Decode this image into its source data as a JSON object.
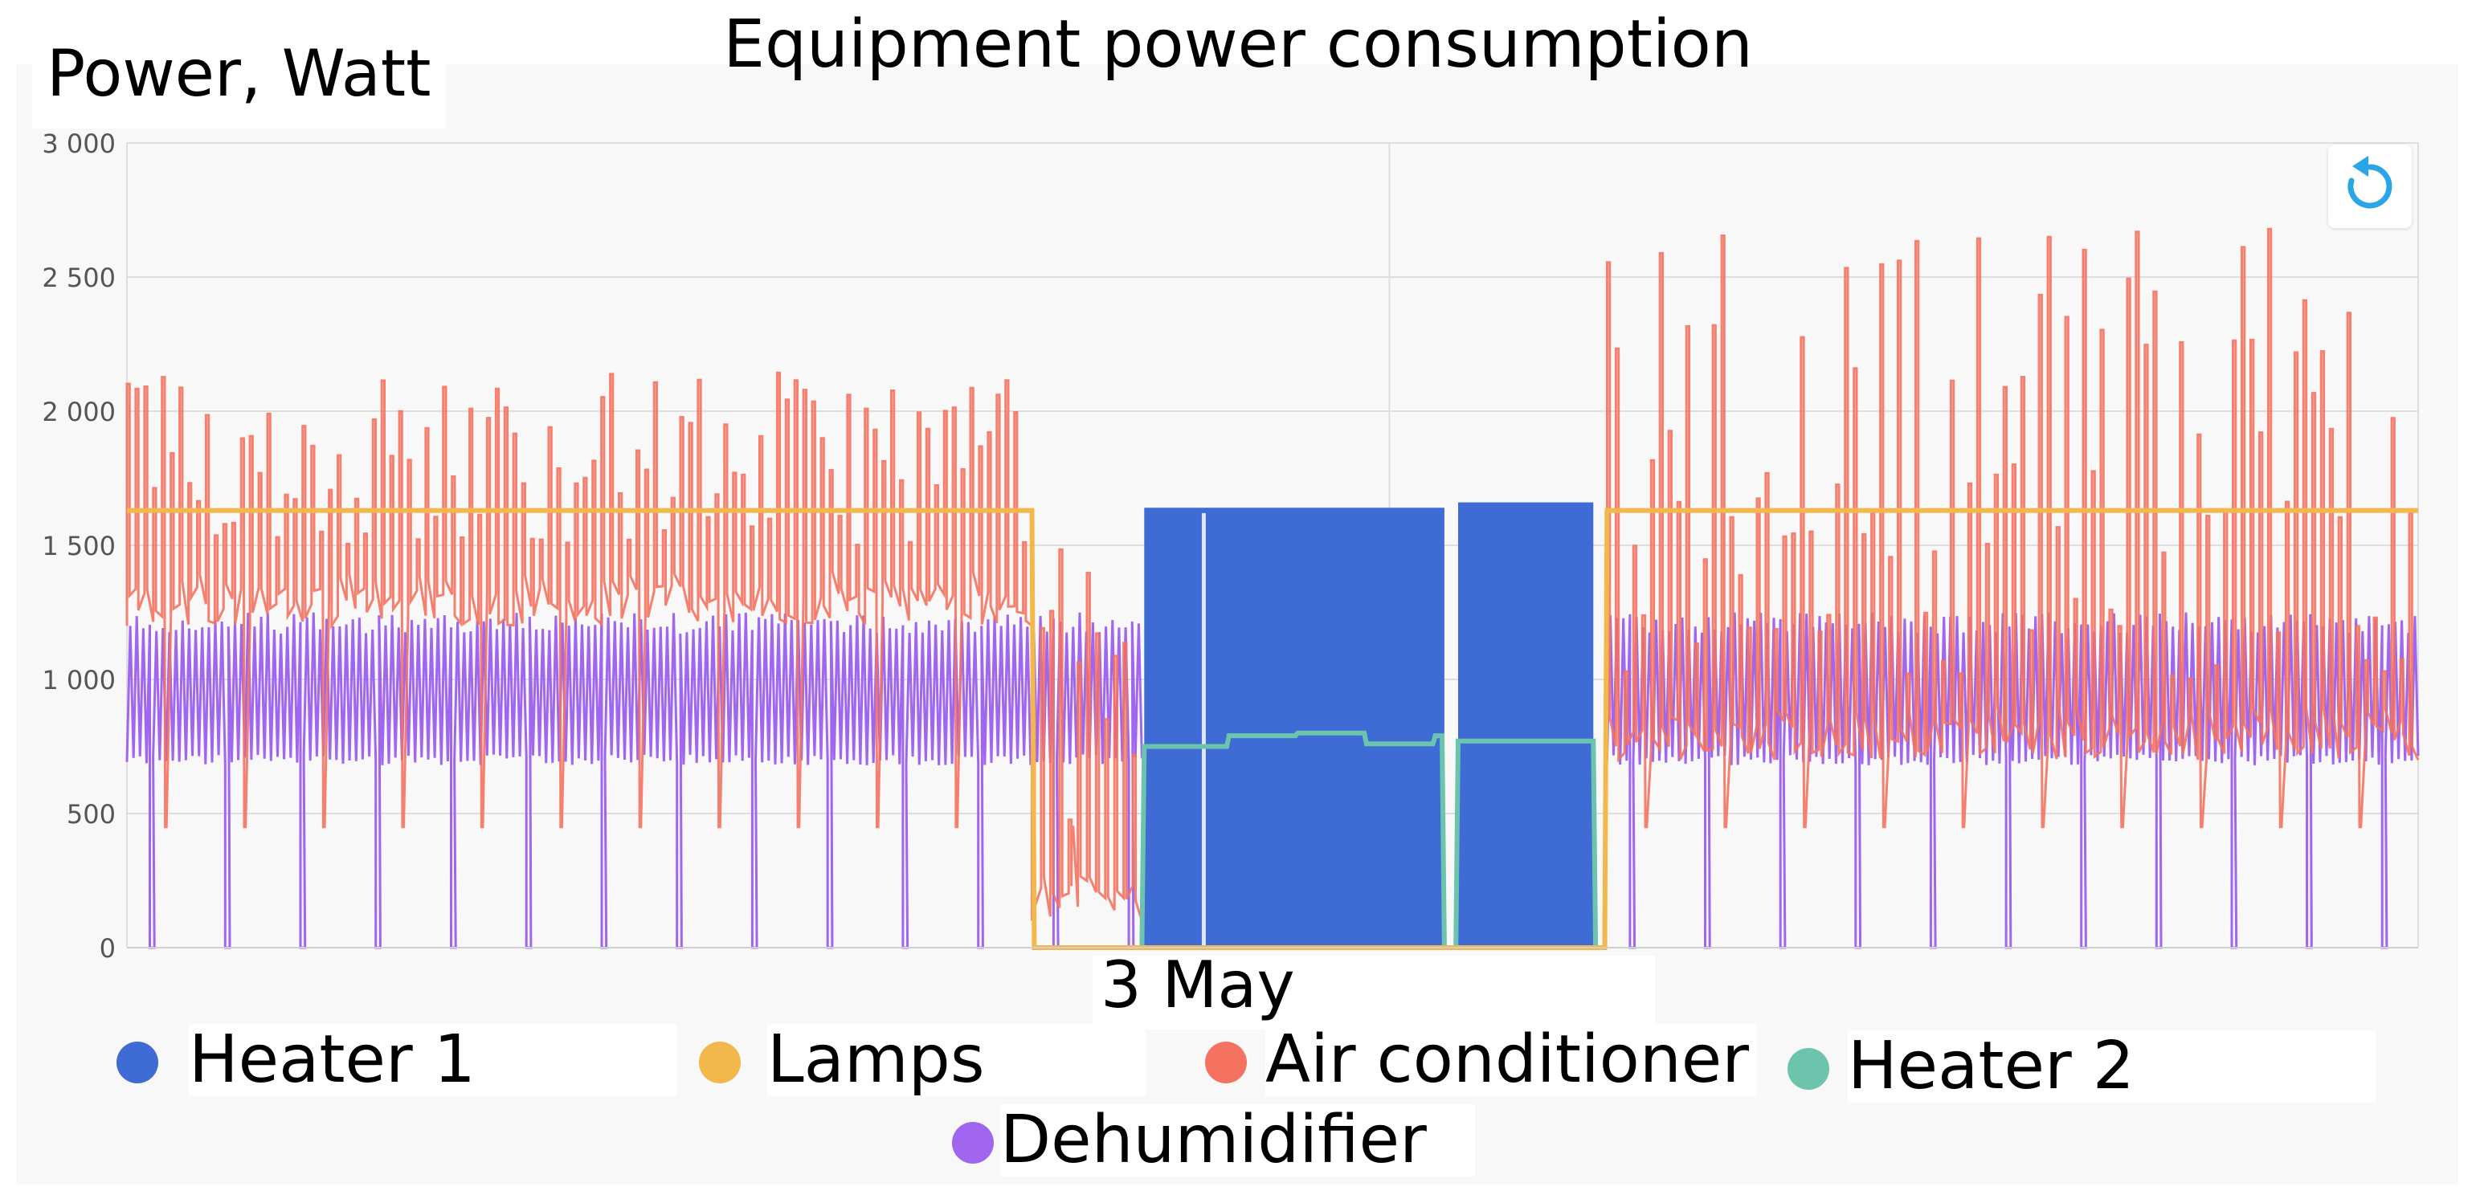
{
  "title": "Equipment power consumption",
  "ylabel": "Power, Watt",
  "xlabel": "3 May",
  "y_ticks": [
    "3 000",
    "2 500",
    "2 000",
    "1 500",
    "1 000",
    "500",
    "0"
  ],
  "legend": [
    {
      "name": "Heater 1",
      "color": "#3f6cd4"
    },
    {
      "name": "Lamps",
      "color": "#f2b84b"
    },
    {
      "name": "Air conditioner",
      "color": "#f4725f"
    },
    {
      "name": "Heater 2",
      "color": "#6cc4ad"
    },
    {
      "name": "Dehumidifier",
      "color": "#a066f0"
    }
  ],
  "reset_icon": "reset-zoom-icon",
  "chart_data": {
    "type": "line",
    "ylim": [
      0,
      3000
    ],
    "y_ticks": [
      0,
      500,
      1000,
      1500,
      2000,
      2500,
      3000
    ],
    "x_ticks": [
      "3 May"
    ],
    "grid": true,
    "legend_position": "bottom",
    "series": [
      {
        "name": "Lamps",
        "color": "#f2b84b",
        "points": [
          [
            0,
            1630
          ],
          [
            0.395,
            1630
          ],
          [
            0.396,
            0
          ],
          [
            0.645,
            0
          ],
          [
            0.646,
            1630
          ],
          [
            1,
            1630
          ]
        ]
      },
      {
        "name": "Heater 1",
        "color": "#3f6cd4",
        "points": [
          [
            0.443,
            0
          ],
          [
            0.444,
            1640
          ],
          [
            0.575,
            1650
          ],
          [
            0.576,
            0
          ],
          [
            0.58,
            0
          ],
          [
            0.581,
            1660
          ],
          [
            0.64,
            1660
          ],
          [
            0.641,
            0
          ]
        ]
      },
      {
        "name": "Heater 2",
        "color": "#6cc4ad",
        "points": [
          [
            0.443,
            0
          ],
          [
            0.444,
            750
          ],
          [
            0.48,
            750
          ],
          [
            0.481,
            790
          ],
          [
            0.51,
            790
          ],
          [
            0.511,
            800
          ],
          [
            0.54,
            800
          ],
          [
            0.541,
            760
          ],
          [
            0.57,
            760
          ],
          [
            0.571,
            790
          ],
          [
            0.574,
            790
          ],
          [
            0.575,
            0
          ],
          [
            0.58,
            0
          ],
          [
            0.581,
            770
          ],
          [
            0.64,
            770
          ],
          [
            0.641,
            0
          ]
        ]
      },
      {
        "name": "Air conditioner",
        "color": "#f4725f",
        "cycling": [
          {
            "x_start": 0.0,
            "x_end": 0.395,
            "low": 1200,
            "high_max": 2150
          },
          {
            "x_start": 0.395,
            "x_end": 0.443,
            "low": 100,
            "high_max": 1500
          },
          {
            "x_start": 0.646,
            "x_end": 1.0,
            "low": 700,
            "high_max": 2730
          }
        ]
      },
      {
        "name": "Dehumidifier",
        "color": "#a066f0",
        "cycling": [
          {
            "x_start": 0.0,
            "x_end": 0.443,
            "low": 680,
            "high": 1250,
            "drops_to": 0
          },
          {
            "x_start": 0.646,
            "x_end": 1.0,
            "low": 680,
            "high": 1250,
            "drops_to": 0
          }
        ]
      }
    ]
  }
}
